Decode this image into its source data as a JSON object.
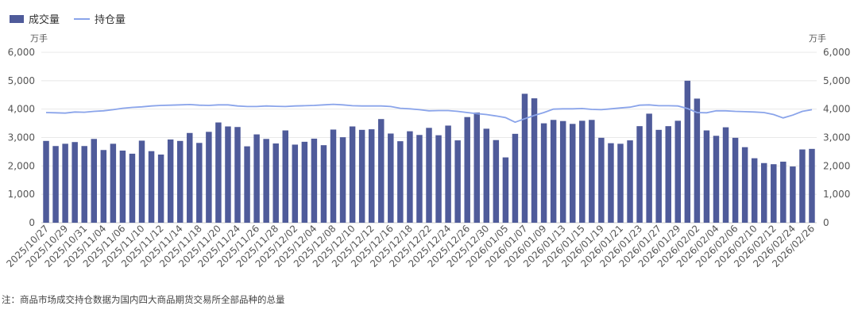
{
  "legend": {
    "volume_label": "成交量",
    "oi_label": "持仓量"
  },
  "left_unit": "万手",
  "right_unit": "万手",
  "note": "注：商品市场成交持仓数据为国内四大商品期货交易所全部品种的总量",
  "colors": {
    "bar": "#4f5b9a",
    "line": "#8aa4ea",
    "grid": "#e8e8e8",
    "axis_text": "#555555"
  },
  "chart_data": {
    "type": "bar",
    "ylim": [
      0,
      6000
    ],
    "yticks": [
      0,
      1000,
      2000,
      3000,
      4000,
      5000,
      6000
    ],
    "ytick_labels": [
      "0",
      "1,000",
      "2,000",
      "3,000",
      "4,000",
      "5,000",
      "6,000"
    ],
    "xtick_labels": [
      "2025/10/27",
      "2025/10/29",
      "2025/10/31",
      "2025/11/04",
      "2025/11/06",
      "2025/11/10",
      "2025/11/12",
      "2025/11/14",
      "2025/11/18",
      "2025/11/20",
      "2025/11/24",
      "2025/11/26",
      "2025/11/28",
      "2025/12/02",
      "2025/12/04",
      "2025/12/08",
      "2025/12/10",
      "2025/12/12",
      "2025/12/16",
      "2025/12/18",
      "2025/12/22",
      "2025/12/24",
      "2025/12/26",
      "2025/12/30",
      "2026/01/05",
      "2026/01/07",
      "2026/01/09",
      "2026/01/13",
      "2026/01/15",
      "2026/01/19",
      "2026/01/21",
      "2026/01/23",
      "2026/01/27",
      "2026/01/29",
      "2026/02/02",
      "2026/02/04",
      "2026/02/06",
      "2026/02/10",
      "2026/02/12",
      "2026/02/24",
      "2026/02/26"
    ],
    "series": [
      {
        "name": "成交量",
        "type": "bar",
        "values": [
          2880,
          2700,
          2780,
          2840,
          2700,
          2950,
          2560,
          2780,
          2540,
          2430,
          2890,
          2520,
          2400,
          2930,
          2880,
          3160,
          2810,
          3200,
          3530,
          3390,
          3370,
          2690,
          3110,
          2950,
          2790,
          3250,
          2750,
          2850,
          2960,
          2730,
          3280,
          3010,
          3390,
          3270,
          3290,
          3650,
          3140,
          2870,
          3220,
          3090,
          3340,
          3080,
          3420,
          2900,
          3720,
          3880,
          3310,
          2910,
          2300,
          3130,
          4540,
          4380,
          3500,
          3620,
          3580,
          3480,
          3590,
          3620,
          2990,
          2800,
          2780,
          2900,
          3400,
          3840,
          3270,
          3400,
          3590,
          5000,
          4370,
          3250,
          3060,
          3360,
          2990,
          2660,
          2270,
          2100,
          2060,
          2150,
          1980,
          2580,
          2600
        ]
      },
      {
        "name": "持仓量",
        "type": "line",
        "values": [
          3880,
          3870,
          3860,
          3900,
          3890,
          3920,
          3940,
          3980,
          4030,
          4060,
          4080,
          4110,
          4130,
          4140,
          4150,
          4160,
          4140,
          4130,
          4150,
          4150,
          4110,
          4090,
          4090,
          4110,
          4100,
          4090,
          4110,
          4120,
          4130,
          4150,
          4170,
          4150,
          4120,
          4110,
          4110,
          4110,
          4090,
          4030,
          4010,
          3980,
          3940,
          3950,
          3950,
          3920,
          3880,
          3840,
          3810,
          3760,
          3700,
          3540,
          3660,
          3780,
          3880,
          4000,
          4010,
          4010,
          4020,
          3990,
          3980,
          4010,
          4040,
          4070,
          4140,
          4150,
          4120,
          4120,
          4110,
          4020,
          3880,
          3870,
          3940,
          3940,
          3920,
          3910,
          3900,
          3880,
          3810,
          3690,
          3790,
          3920,
          3980
        ]
      }
    ]
  }
}
